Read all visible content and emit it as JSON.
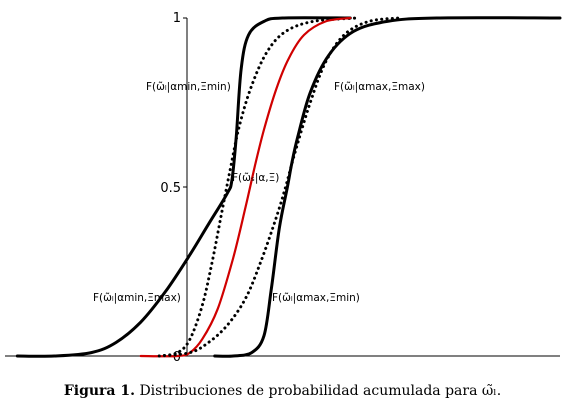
{
  "caption": {
    "label": "Figura 1.",
    "text": "Distribuciones de probabilidad acumulada para ω̃ₗ."
  },
  "chart_data": {
    "type": "line",
    "xlim": [
      -3,
      6
    ],
    "ylim": [
      0,
      1
    ],
    "x_ticks": [],
    "y_ticks": [
      {
        "value": 0,
        "label": "0"
      },
      {
        "value": 0.5,
        "label": "0.5"
      },
      {
        "value": 1,
        "label": "1"
      }
    ],
    "grid": false,
    "legend": "none",
    "series": [
      {
        "style": "solid",
        "color": "#000000",
        "width": 3,
        "points": [
          [
            -2.8,
            0
          ],
          [
            -2.2,
            0
          ],
          [
            -1.6,
            0.01
          ],
          [
            -1.2,
            0.04
          ],
          [
            -0.8,
            0.1
          ],
          [
            -0.4,
            0.19
          ],
          [
            0,
            0.3
          ],
          [
            0.3,
            0.39
          ],
          [
            0.6,
            0.48
          ],
          [
            0.68,
            0.52
          ],
          [
            0.75,
            0.65
          ],
          [
            0.83,
            0.85
          ],
          [
            0.95,
            0.95
          ],
          [
            1.2,
            0.99
          ],
          [
            1.5,
            1
          ],
          [
            2.6,
            1
          ]
        ]
      },
      {
        "style": "dotted",
        "color": "#000000",
        "width": 3,
        "points": [
          [
            -0.5,
            0
          ],
          [
            -0.2,
            0.01
          ],
          [
            0,
            0.05
          ],
          [
            0.2,
            0.15
          ],
          [
            0.35,
            0.27
          ],
          [
            0.5,
            0.41
          ],
          [
            0.65,
            0.55
          ],
          [
            0.8,
            0.68
          ],
          [
            1,
            0.8
          ],
          [
            1.25,
            0.9
          ],
          [
            1.55,
            0.96
          ],
          [
            2,
            0.99
          ],
          [
            2.7,
            1
          ]
        ]
      },
      {
        "style": "solid",
        "color": "#d00000",
        "width": 2.2,
        "points": [
          [
            -0.8,
            0
          ],
          [
            -0.2,
            0
          ],
          [
            0,
            0.01
          ],
          [
            0.2,
            0.05
          ],
          [
            0.45,
            0.14
          ],
          [
            0.7,
            0.29
          ],
          [
            0.9,
            0.44
          ],
          [
            1.05,
            0.56
          ],
          [
            1.2,
            0.67
          ],
          [
            1.4,
            0.79
          ],
          [
            1.6,
            0.88
          ],
          [
            1.85,
            0.95
          ],
          [
            2.2,
            0.99
          ],
          [
            2.6,
            1
          ]
        ]
      },
      {
        "style": "dotted",
        "color": "#000000",
        "width": 3,
        "points": [
          [
            -0.5,
            0
          ],
          [
            0,
            0.01
          ],
          [
            0.3,
            0.04
          ],
          [
            0.6,
            0.09
          ],
          [
            0.9,
            0.17
          ],
          [
            1.15,
            0.28
          ],
          [
            1.4,
            0.41
          ],
          [
            1.55,
            0.5
          ],
          [
            1.7,
            0.6
          ],
          [
            1.95,
            0.75
          ],
          [
            2.2,
            0.87
          ],
          [
            2.5,
            0.95
          ],
          [
            2.9,
            0.99
          ],
          [
            3.4,
            1
          ]
        ]
      },
      {
        "style": "solid",
        "color": "#000000",
        "width": 3,
        "points": [
          [
            0.4,
            0
          ],
          [
            0.7,
            0
          ],
          [
            1,
            0.01
          ],
          [
            1.2,
            0.06
          ],
          [
            1.32,
            0.2
          ],
          [
            1.45,
            0.38
          ],
          [
            1.58,
            0.5
          ],
          [
            1.65,
            0.57
          ],
          [
            1.75,
            0.65
          ],
          [
            1.95,
            0.78
          ],
          [
            2.25,
            0.89
          ],
          [
            2.65,
            0.96
          ],
          [
            3.2,
            0.99
          ],
          [
            4,
            1
          ],
          [
            6,
            1
          ]
        ]
      }
    ],
    "annotations": [
      {
        "text": "F(ω̃ₗ|αmin,Ξmin)"
      },
      {
        "text": "F(ω̃ₗ|αmax,Ξmax)"
      },
      {
        "text": "F(ω̃ₛ|α,Ξ)"
      },
      {
        "text": "F(ω̃ₗ|αmin,Ξmax)"
      },
      {
        "text": "F(ω̃ₗ|αmax,Ξmin)"
      }
    ]
  }
}
